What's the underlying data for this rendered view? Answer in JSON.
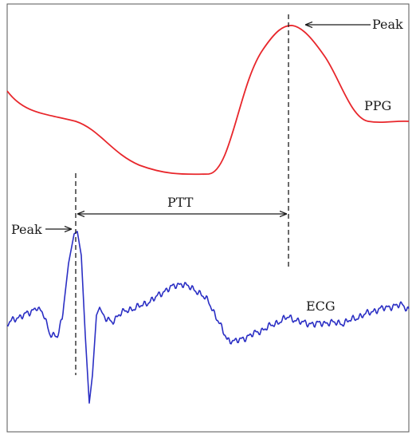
{
  "labels": {
    "ppg_peak": "Peak",
    "ppg": "PPG",
    "ptt": "PTT",
    "ecg_peak": "Peak",
    "ecg": "ECG"
  },
  "colors": {
    "ppg": "#e8262b",
    "ecg": "#2b2fc4",
    "frame": "#555555",
    "annotation": "#1a1a1a"
  }
}
